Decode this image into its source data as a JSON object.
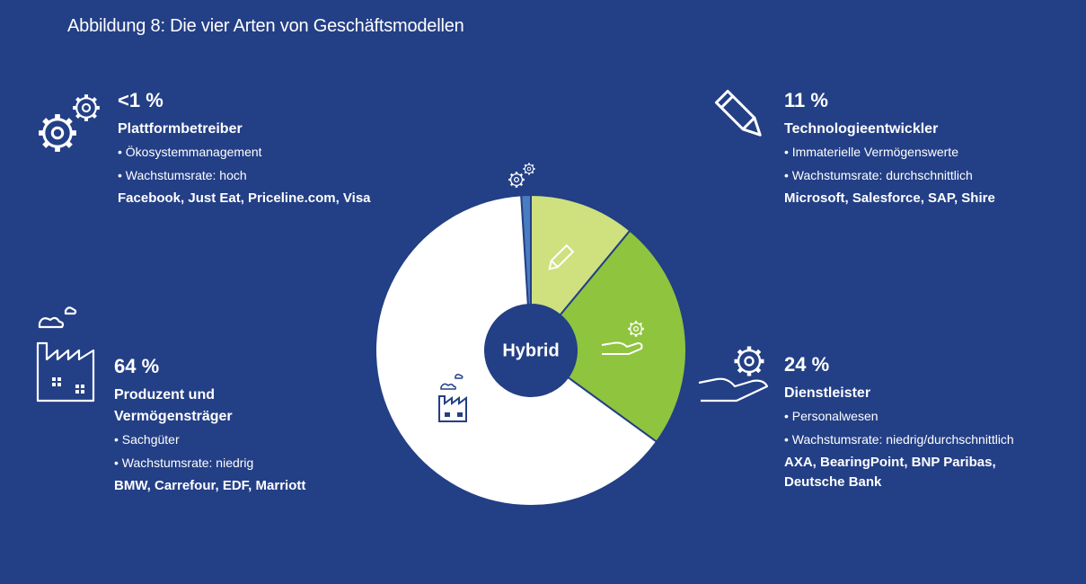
{
  "title": "Abbildung 8: Die vier Arten von Geschäftsmodellen",
  "center_label": "Hybrid",
  "colors": {
    "background": "#233f86",
    "produzent": "#ffffff",
    "plattform": "#4a7cc0",
    "technologie": "#cfe07f",
    "dienstleister": "#8fc43e"
  },
  "chart_data": {
    "type": "pie",
    "center_label": "Hybrid",
    "slices": [
      {
        "label": "Plattformbetreiber",
        "display": "<1 %",
        "value": 1,
        "color": "#4a7cc0",
        "icon": "gears-icon"
      },
      {
        "label": "Technologieentwickler",
        "display": "11 %",
        "value": 11,
        "color": "#cfe07f",
        "icon": "pencil-icon"
      },
      {
        "label": "Dienstleister",
        "display": "24 %",
        "value": 24,
        "color": "#8fc43e",
        "icon": "hand-gear-icon"
      },
      {
        "label": "Produzent und Vermögensträger",
        "display": "64 %",
        "value": 64,
        "color": "#ffffff",
        "icon": "factory-icon"
      }
    ]
  },
  "categories": {
    "plattform": {
      "pct": "<1 %",
      "name": "Plattformbetreiber",
      "bullets": [
        "Ökosystemmanagement",
        "Wachstumsrate: hoch"
      ],
      "firms": "Facebook, Just Eat, Priceline.com, Visa",
      "icon": "gears-icon"
    },
    "technologie": {
      "pct": "11 %",
      "name": "Technologieentwickler",
      "bullets": [
        "Immaterielle Vermögenswerte",
        "Wachstumsrate: durchschnittlich"
      ],
      "firms": "Microsoft, Salesforce, SAP, Shire",
      "icon": "pencil-icon"
    },
    "produzent": {
      "pct": "64 %",
      "name_line1": "Produzent und",
      "name_line2": "Vermögensträger",
      "bullets": [
        "Sachgüter",
        "Wachstumsrate: niedrig"
      ],
      "firms": "BMW, Carrefour, EDF, Marriott",
      "icon": "factory-icon"
    },
    "dienstleister": {
      "pct": "24 %",
      "name": "Dienstleister",
      "bullets": [
        "Personalwesen",
        "Wachstumsrate: niedrig/durchschnittlich"
      ],
      "firms_line1": "AXA, BearingPoint, BNP Paribas,",
      "firms_line2": "Deutsche Bank",
      "icon": "hand-gear-icon"
    }
  }
}
